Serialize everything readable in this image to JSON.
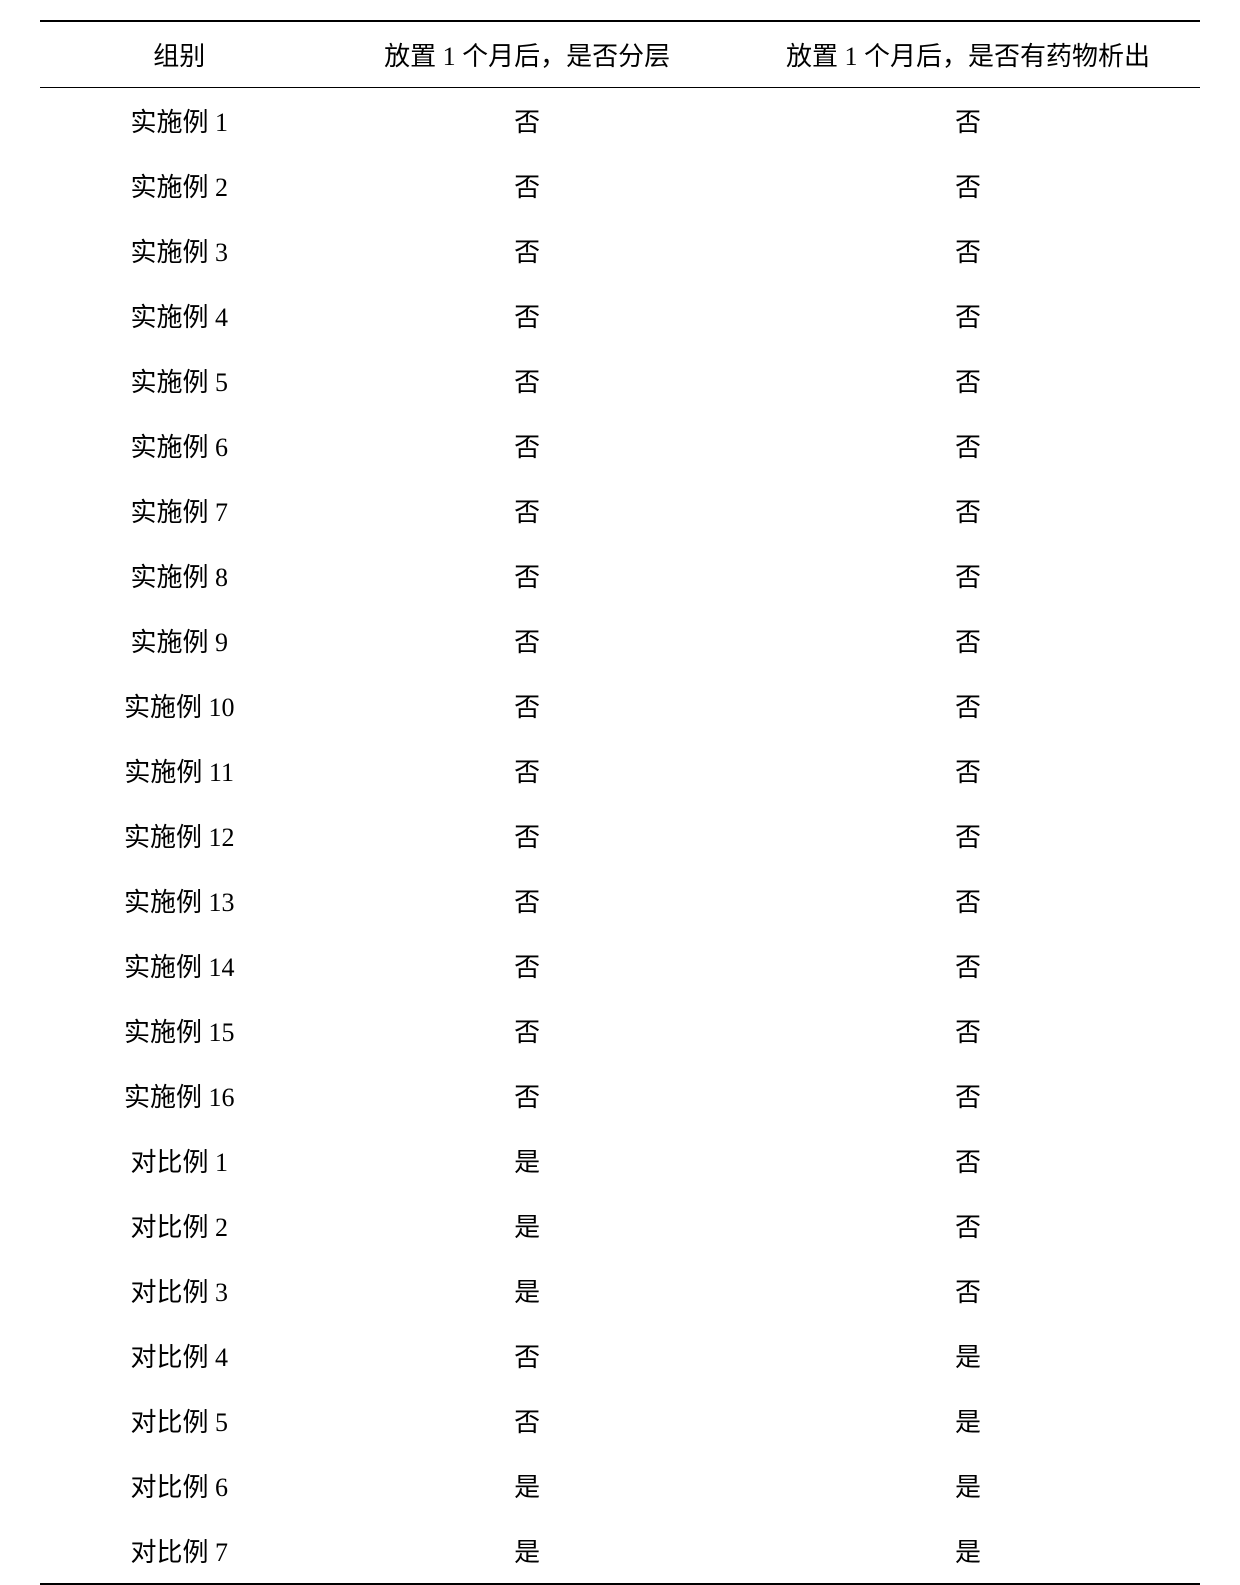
{
  "table": {
    "type": "table",
    "columns": [
      "组别",
      "放置 1 个月后，是否分层",
      "放置 1 个月后，是否有药物析出"
    ],
    "rows": [
      [
        "实施例 1",
        "否",
        "否"
      ],
      [
        "实施例 2",
        "否",
        "否"
      ],
      [
        "实施例 3",
        "否",
        "否"
      ],
      [
        "实施例 4",
        "否",
        "否"
      ],
      [
        "实施例 5",
        "否",
        "否"
      ],
      [
        "实施例 6",
        "否",
        "否"
      ],
      [
        "实施例 7",
        "否",
        "否"
      ],
      [
        "实施例 8",
        "否",
        "否"
      ],
      [
        "实施例 9",
        "否",
        "否"
      ],
      [
        "实施例 10",
        "否",
        "否"
      ],
      [
        "实施例 11",
        "否",
        "否"
      ],
      [
        "实施例 12",
        "否",
        "否"
      ],
      [
        "实施例 13",
        "否",
        "否"
      ],
      [
        "实施例 14",
        "否",
        "否"
      ],
      [
        "实施例 15",
        "否",
        "否"
      ],
      [
        "实施例 16",
        "否",
        "否"
      ],
      [
        "对比例 1",
        "是",
        "否"
      ],
      [
        "对比例 2",
        "是",
        "否"
      ],
      [
        "对比例 3",
        "是",
        "否"
      ],
      [
        "对比例 4",
        "否",
        "是"
      ],
      [
        "对比例 5",
        "否",
        "是"
      ],
      [
        "对比例 6",
        "是",
        "是"
      ],
      [
        "对比例 7",
        "是",
        "是"
      ]
    ],
    "border_color": "#000000",
    "background_color": "#ffffff",
    "text_color": "#000000",
    "font_size": 26,
    "column_widths": [
      "24%",
      "36%",
      "40%"
    ],
    "column_alignment": [
      "center",
      "center",
      "center"
    ]
  }
}
